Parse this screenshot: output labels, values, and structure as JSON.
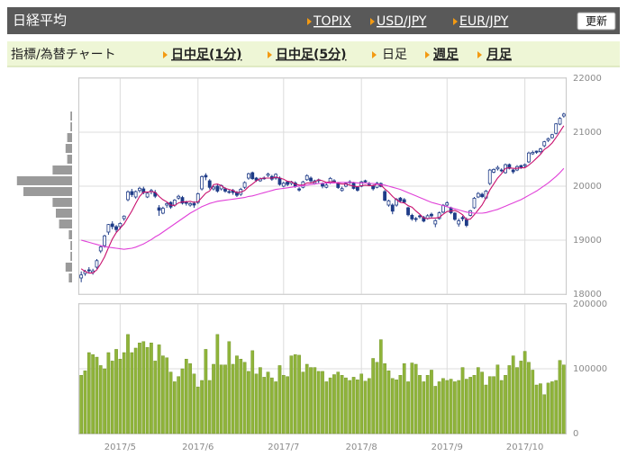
{
  "header": {
    "title": "日経平均",
    "links": [
      "TOPIX",
      "USD/JPY",
      "EUR/JPY"
    ],
    "button": "更新"
  },
  "nav": {
    "label": "指標/為替チャート",
    "tabs": [
      "日中足(1分)",
      "日中足(5分)",
      "日足",
      "週足",
      "月足"
    ],
    "active": 2
  },
  "chart_data": [
    {
      "type": "candlestick",
      "color": "#1f3c88",
      "grid": true,
      "ylim": [
        18000,
        22000
      ],
      "yticks": [
        18000,
        19000,
        20000,
        21000,
        22000
      ],
      "open": [
        18300,
        18380,
        18450,
        18400,
        18500,
        18800,
        18900,
        19150,
        19300,
        19250,
        19250,
        19400,
        19750,
        19900,
        19800,
        19920,
        19950,
        19800,
        19900,
        19880,
        19600,
        19500,
        19650,
        19700,
        19650,
        19780,
        19790,
        19700,
        19650,
        19680,
        19700,
        19950,
        20200,
        20100,
        19950,
        20000,
        19950,
        19950,
        19900,
        19920,
        19880,
        19850,
        19980,
        20150,
        20250,
        20150,
        20100,
        20150,
        20200,
        20180,
        20150,
        20150,
        20000,
        20080,
        20050,
        20060,
        19950,
        19980,
        20120,
        20150,
        20050,
        20100,
        20050,
        19980,
        20060,
        20100,
        20050,
        19920,
        20000,
        20080,
        20060,
        19980,
        20000,
        20100,
        20050,
        20000,
        19980,
        20050,
        19900,
        19650,
        19650,
        19650,
        19780,
        19750,
        19600,
        19460,
        19400,
        19450,
        19420,
        19400,
        19480,
        19300,
        19400,
        19520,
        19650,
        19600,
        19500,
        19300,
        19420,
        19380,
        19460,
        19600,
        19800,
        19850,
        19780,
        20050,
        20260,
        20320,
        20300,
        20250,
        20400,
        20300,
        20300,
        20380,
        20380,
        20450,
        20600,
        20650,
        20640,
        20750,
        20850,
        20900,
        20980,
        21150,
        21300
      ],
      "high": [
        18420,
        18450,
        18500,
        18470,
        18650,
        18900,
        19100,
        19300,
        19350,
        19280,
        19330,
        19460,
        19920,
        19950,
        19920,
        19990,
        19990,
        19900,
        19950,
        19930,
        19650,
        19620,
        19700,
        19720,
        19760,
        19840,
        19820,
        19730,
        19700,
        19720,
        19880,
        20200,
        20240,
        20130,
        20010,
        20040,
        20030,
        19980,
        19930,
        19950,
        19910,
        19970,
        20090,
        20250,
        20270,
        20170,
        20160,
        20180,
        20250,
        20210,
        20240,
        20180,
        20080,
        20100,
        20100,
        20090,
        19980,
        20100,
        20220,
        20180,
        20120,
        20140,
        20070,
        20050,
        20170,
        20130,
        20070,
        19990,
        20070,
        20110,
        20080,
        20000,
        20100,
        20120,
        20080,
        20030,
        20080,
        20070,
        19930,
        19750,
        19680,
        19780,
        19800,
        19780,
        19620,
        19490,
        19430,
        19470,
        19450,
        19480,
        19510,
        19390,
        19530,
        19670,
        19720,
        19620,
        19520,
        19400,
        19450,
        19420,
        19560,
        19800,
        19890,
        19880,
        19930,
        20320,
        20330,
        20380,
        20330,
        20420,
        20420,
        20320,
        20390,
        20400,
        20420,
        20640,
        20660,
        20660,
        20710,
        20840,
        20900,
        20970,
        21170,
        21280,
        21360
      ],
      "low": [
        18220,
        18340,
        18380,
        18360,
        18470,
        18760,
        18860,
        19100,
        19200,
        19150,
        19200,
        19360,
        19720,
        19800,
        19770,
        19880,
        19850,
        19780,
        19850,
        19780,
        19450,
        19480,
        19600,
        19580,
        19620,
        19750,
        19660,
        19640,
        19620,
        19600,
        19670,
        19920,
        20110,
        19940,
        19920,
        19880,
        19920,
        19880,
        19860,
        19840,
        19800,
        19820,
        19950,
        20120,
        20120,
        20080,
        20080,
        20120,
        20170,
        20100,
        20120,
        20010,
        19980,
        20000,
        20020,
        19970,
        19900,
        19960,
        20100,
        20070,
        20030,
        20060,
        19960,
        19960,
        20040,
        20070,
        19950,
        19900,
        19980,
        20040,
        19940,
        19900,
        19980,
        20050,
        20000,
        19920,
        19960,
        19980,
        19720,
        19620,
        19480,
        19620,
        19700,
        19680,
        19440,
        19360,
        19340,
        19400,
        19330,
        19380,
        19420,
        19240,
        19380,
        19500,
        19620,
        19480,
        19360,
        19250,
        19350,
        19240,
        19440,
        19580,
        19780,
        19780,
        19760,
        20020,
        20240,
        20290,
        20260,
        20230,
        20310,
        20230,
        20280,
        20320,
        20350,
        20430,
        20580,
        20600,
        20610,
        20720,
        20820,
        20880,
        20960,
        21130,
        21270
      ],
      "close": [
        18355,
        18418,
        18432,
        18430,
        18620,
        18875,
        19079,
        19289,
        19251,
        19196,
        19310,
        19445,
        19895,
        19843,
        19900,
        19961,
        19883,
        19869,
        19919,
        19814,
        19553,
        19590,
        19678,
        19613,
        19742,
        19813,
        19686,
        19682,
        19677,
        19650,
        19860,
        20177,
        20170,
        19979,
        19984,
        19909,
        20013,
        19908,
        19898,
        19883,
        19831,
        19943,
        20067,
        20230,
        20138,
        20110,
        20132,
        20153,
        20225,
        20130,
        20220,
        20033,
        20055,
        20032,
        20081,
        19994,
        19929,
        20080,
        20195,
        20098,
        20099,
        20118,
        20000,
        20020,
        20144,
        20099,
        19975,
        19955,
        20050,
        20079,
        19959,
        19925,
        20080,
        20080,
        20029,
        19952,
        20055,
        19996,
        19738,
        19729,
        19537,
        19753,
        19729,
        19702,
        19470,
        19393,
        19383,
        19434,
        19353,
        19452,
        19449,
        19362,
        19506,
        19646,
        19691,
        19508,
        19385,
        19357,
        19396,
        19274,
        19545,
        19776,
        19865,
        19807,
        19909,
        20299,
        20310,
        20347,
        20296,
        20398,
        20330,
        20267,
        20363,
        20356,
        20400,
        20614,
        20626,
        20628,
        20690,
        20823,
        20881,
        20954,
        21155,
        21255,
        21336
      ],
      "lines": [
        {
          "color": "#c8106e",
          "values": [
            18470,
            18420,
            18390,
            18390,
            18450,
            18560,
            18690,
            18860,
            19020,
            19140,
            19220,
            19300,
            19420,
            19540,
            19680,
            19810,
            19890,
            19890,
            19900,
            19890,
            19810,
            19750,
            19710,
            19650,
            19640,
            19690,
            19710,
            19710,
            19720,
            19700,
            19710,
            19790,
            19870,
            19910,
            20030,
            20040,
            20010,
            19960,
            19940,
            19920,
            19880,
            19890,
            19920,
            19990,
            20040,
            20100,
            20140,
            20150,
            20150,
            20150,
            20170,
            20150,
            20130,
            20090,
            20080,
            20040,
            20020,
            20020,
            20060,
            20060,
            20080,
            20120,
            20100,
            20070,
            20080,
            20080,
            20050,
            20040,
            20040,
            20020,
            20000,
            19990,
            20010,
            20020,
            20010,
            20010,
            20040,
            20020,
            19950,
            19890,
            19810,
            19750,
            19700,
            19690,
            19640,
            19610,
            19540,
            19480,
            19410,
            19400,
            19410,
            19410,
            19420,
            19480,
            19530,
            19540,
            19550,
            19520,
            19470,
            19380,
            19390,
            19470,
            19560,
            19650,
            19780,
            19930,
            20040,
            20150,
            20230,
            20330,
            20340,
            20330,
            20330,
            20340,
            20340,
            20390,
            20450,
            20520,
            20590,
            20680,
            20730,
            20800,
            20900,
            21010,
            21120
          ]
        },
        {
          "color": "#e040d8",
          "values": [
            19000,
            18980,
            18960,
            18940,
            18920,
            18900,
            18880,
            18870,
            18860,
            18850,
            18840,
            18830,
            18840,
            18850,
            18870,
            18900,
            18930,
            18970,
            19010,
            19060,
            19100,
            19150,
            19200,
            19250,
            19300,
            19350,
            19400,
            19450,
            19500,
            19540,
            19580,
            19620,
            19650,
            19680,
            19700,
            19720,
            19730,
            19740,
            19750,
            19760,
            19770,
            19780,
            19790,
            19810,
            19820,
            19840,
            19860,
            19880,
            19900,
            19920,
            19940,
            19950,
            19960,
            19970,
            19980,
            19990,
            20000,
            20010,
            20020,
            20030,
            20040,
            20050,
            20050,
            20060,
            20060,
            20060,
            20070,
            20070,
            20070,
            20070,
            20070,
            20060,
            20060,
            20060,
            20050,
            20050,
            20040,
            20030,
            20020,
            20000,
            19980,
            19960,
            19940,
            19910,
            19880,
            19850,
            19820,
            19790,
            19760,
            19730,
            19700,
            19680,
            19660,
            19640,
            19620,
            19600,
            19580,
            19560,
            19540,
            19520,
            19510,
            19500,
            19500,
            19500,
            19510,
            19530,
            19550,
            19570,
            19600,
            19630,
            19660,
            19690,
            19720,
            19750,
            19790,
            19830,
            19870,
            19910,
            19960,
            20010,
            20060,
            20120,
            20180,
            20250,
            20330
          ]
        }
      ]
    },
    {
      "type": "bar",
      "color": "#8fb43a",
      "grid": true,
      "ylim": [
        0,
        200000
      ],
      "yticks": [
        0,
        100000,
        200000
      ],
      "categories": [
        null,
        null,
        null,
        null,
        null,
        null,
        null,
        null,
        null,
        null,
        "2017/5",
        null,
        null,
        null,
        null,
        null,
        null,
        null,
        null,
        null,
        null,
        null,
        null,
        null,
        null,
        null,
        null,
        null,
        null,
        null,
        "2017/6",
        null,
        null,
        null,
        null,
        null,
        null,
        null,
        null,
        null,
        null,
        null,
        null,
        null,
        null,
        null,
        null,
        null,
        null,
        null,
        null,
        null,
        "2017/7",
        null,
        null,
        null,
        null,
        null,
        null,
        null,
        null,
        null,
        null,
        null,
        null,
        null,
        null,
        null,
        null,
        null,
        null,
        null,
        "2017/8",
        null,
        null,
        null,
        null,
        null,
        null,
        null,
        null,
        null,
        null,
        null,
        null,
        null,
        null,
        null,
        null,
        null,
        null,
        null,
        null,
        null,
        "2017/9",
        null,
        null,
        null,
        null,
        null,
        null,
        null,
        null,
        null,
        null,
        null,
        null,
        null,
        null,
        null,
        null,
        null,
        null,
        null,
        "2017/10",
        null,
        null,
        null,
        null,
        null,
        null,
        null,
        null,
        null,
        null
      ],
      "values": [
        90000,
        97000,
        125000,
        122000,
        118000,
        105000,
        100000,
        125000,
        112000,
        130000,
        115000,
        125000,
        153000,
        125000,
        132000,
        140000,
        142000,
        133000,
        140000,
        112000,
        137000,
        120000,
        117000,
        95000,
        80000,
        88000,
        100000,
        115000,
        108000,
        92000,
        72000,
        82000,
        130000,
        82000,
        107000,
        153000,
        106000,
        106000,
        142000,
        107000,
        120000,
        115000,
        110000,
        96000,
        128000,
        92000,
        102000,
        87000,
        95000,
        86000,
        80000,
        105000,
        90000,
        88000,
        120000,
        122000,
        121000,
        95000,
        107000,
        102000,
        102000,
        96000,
        96000,
        80000,
        86000,
        91000,
        95000,
        90000,
        86000,
        82000,
        87000,
        83000,
        92000,
        81000,
        85000,
        116000,
        110000,
        145000,
        108000,
        97000,
        85000,
        83000,
        90000,
        108000,
        80000,
        109000,
        107000,
        90000,
        80000,
        90000,
        98000,
        73000,
        80000,
        85000,
        82000,
        84000,
        80000,
        82000,
        102000,
        84000,
        87000,
        90000,
        102000,
        95000,
        75000,
        88000,
        88000,
        106000,
        82000,
        90000,
        105000,
        120000,
        102000,
        112000,
        127000,
        110000,
        98000,
        75000,
        77000,
        60000,
        78000,
        80000,
        82000,
        113000,
        106000
      ]
    },
    {
      "type": "histogram",
      "orientation": "horizontal",
      "color": "#9a9a9a",
      "bins": [
        18200,
        18400,
        18600,
        18800,
        19000,
        19200,
        19400,
        19600,
        19800,
        20000,
        20200,
        20400,
        20600,
        20800,
        21000,
        21200,
        21400
      ],
      "values": [
        2,
        4,
        1,
        1,
        2,
        8,
        10,
        12,
        30,
        34,
        12,
        3,
        4,
        3,
        1,
        1
      ]
    }
  ]
}
